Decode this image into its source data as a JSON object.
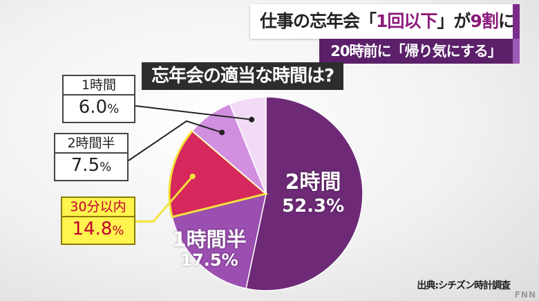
{
  "headline": {
    "prefix": "仕事の忘年会「",
    "accent1": "1回以下",
    "middle": "」が",
    "accent2": "9割",
    "suffix": "に"
  },
  "subheadline": "20時前に「帰り気にする」",
  "chart_data": {
    "type": "pie",
    "title": "忘年会の適当な時間は?",
    "slices": [
      {
        "label": "2時間",
        "value": 52.3,
        "color": "#6e2a77"
      },
      {
        "label": "1時間半",
        "value": 17.5,
        "color": "#9b4fb0"
      },
      {
        "label": "30分以内",
        "value": 14.8,
        "color": "#d6285c"
      },
      {
        "label": "2時間半",
        "value": 7.5,
        "color": "#d28fe0"
      },
      {
        "label": "1時間",
        "value": 6.0,
        "color": "#f2dcf5"
      }
    ]
  },
  "labels": {
    "s1": {
      "name": "1時間",
      "num": "6.0",
      "unit": "%"
    },
    "s2": {
      "name": "2時間半",
      "num": "7.5",
      "unit": "%"
    },
    "s3": {
      "name": "30分以内",
      "num": "14.8",
      "unit": "%"
    },
    "s4": {
      "name": "2時間",
      "value": "52.3%"
    },
    "s5": {
      "name": "1時間半",
      "value": "17.5%"
    }
  },
  "source": "出典:シチズン時計調査",
  "logo": "FNN"
}
